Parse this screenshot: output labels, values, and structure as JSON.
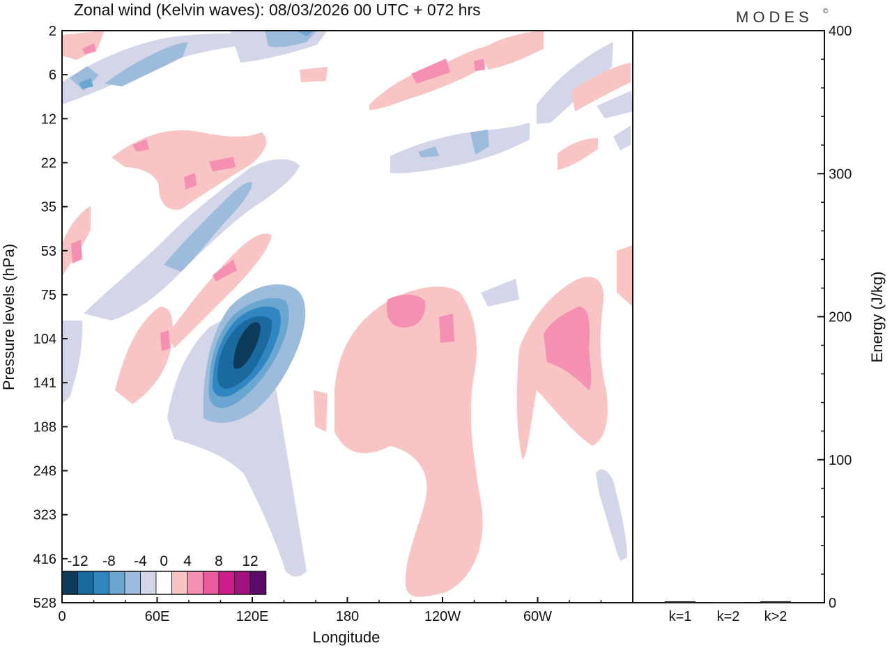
{
  "header": {
    "title": "Zonal wind (Kelvin waves):  08/03/2026  00 UTC  + 072 hrs",
    "logo": "MODES",
    "logo_mark": "©"
  },
  "chart_data": [
    {
      "type": "heatmap",
      "title": "Zonal wind (Kelvin waves):  08/03/2026  00 UTC  + 072 hrs",
      "xlabel": "Longitude",
      "ylabel": "Pressure levels (hPa)",
      "x_ticks": [
        "0",
        "60E",
        "120E",
        "180",
        "120W",
        "60W"
      ],
      "x_range": [
        0,
        360
      ],
      "y_ticks": [
        "2",
        "6",
        "12",
        "22",
        "35",
        "53",
        "75",
        "104",
        "141",
        "188",
        "248",
        "323",
        "416",
        "528"
      ],
      "colorbar": {
        "labels": [
          "-12",
          "-8",
          "-4",
          "0",
          "4",
          "8",
          "12"
        ],
        "levels": [
          -14,
          -12,
          -10,
          -8,
          -6,
          -4,
          -2,
          2,
          4,
          6,
          8,
          10,
          12,
          14
        ],
        "colors": [
          "#0c3b5c",
          "#1a6aa0",
          "#2f86c0",
          "#6aa6cf",
          "#9dbcdc",
          "#d3d6e8",
          "#ffffff",
          "#f8c4c4",
          "#f590b2",
          "#ea5a9e",
          "#cc1f8c",
          "#a3137f",
          "#5c0a6a"
        ]
      },
      "features": [
        {
          "name": "strong-easterly-core",
          "sign": "negative",
          "lon": [
            95,
            150
          ],
          "level_index": [
            6.8,
            10.5
          ],
          "min_value": -14
        },
        {
          "name": "tilted-easterly-band",
          "sign": "negative",
          "lon": [
            40,
            130
          ],
          "level_index": [
            3.0,
            7.0
          ],
          "min_value": -6
        },
        {
          "name": "westerly-plume-west",
          "sign": "positive",
          "lon": [
            170,
            280
          ],
          "level_index": [
            6.0,
            13.0
          ],
          "max_value": 6
        },
        {
          "name": "westerly-plume-east",
          "sign": "positive",
          "lon": [
            290,
            340
          ],
          "level_index": [
            6.0,
            9.5
          ],
          "max_value": 6
        },
        {
          "name": "tilted-westerly-band",
          "sign": "positive",
          "lon": [
            40,
            110
          ],
          "level_index": [
            2.0,
            8.0
          ],
          "max_value": 6
        },
        {
          "name": "upper-westerly-patches",
          "sign": "positive",
          "lon": [
            200,
            360
          ],
          "level_index": [
            0.5,
            3.5
          ],
          "max_value": 6
        },
        {
          "name": "upper-easterly-patches",
          "sign": "negative",
          "lon": [
            0,
            180
          ],
          "level_index": [
            0,
            2.5
          ],
          "min_value": -6
        }
      ]
    },
    {
      "type": "bar",
      "categories": [
        "k=1",
        "k=2",
        "k>2"
      ],
      "values": [
        1,
        0,
        1
      ],
      "ylabel": "Energy (J/kg)",
      "ylim": [
        0,
        400
      ],
      "y_ticks": [
        "0",
        "100",
        "200",
        "300",
        "400"
      ]
    }
  ]
}
